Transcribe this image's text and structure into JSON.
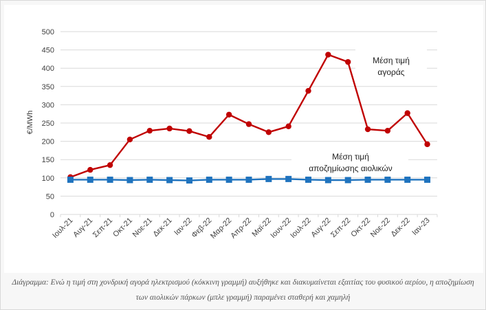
{
  "chart_data": {
    "type": "line",
    "title": "",
    "xlabel": "",
    "ylabel": "€/MWh",
    "ylim": [
      0,
      500
    ],
    "yticks": [
      0,
      50,
      100,
      150,
      200,
      250,
      300,
      350,
      400,
      450,
      500
    ],
    "grid": true,
    "categories": [
      "Ιουλ-21",
      "Αυγ-21",
      "Σεπ-21",
      "Οκτ-21",
      "Νοε-21",
      "Δεκ-21",
      "Ιαν-22",
      "Φεβ-22",
      "Μαρ-22",
      "Απρ-22",
      "Μαϊ-22",
      "Ιουν-22",
      "Ιουλ-22",
      "Αυγ-22",
      "Σεπ-22",
      "Οκτ-22",
      "Νοε-22",
      "Δεκ-22",
      "Ιαν-23"
    ],
    "series": [
      {
        "name": "Μέση τιμή αγοράς",
        "color": "#c00000",
        "marker": "circle",
        "values": [
          102,
          122,
          135,
          205,
          229,
          235,
          228,
          212,
          273,
          247,
          225,
          241,
          338,
          437,
          417,
          233,
          229,
          277,
          192
        ]
      },
      {
        "name": "Μέση τιμή αποζημίωσης αιολικών",
        "color": "#1f73be",
        "marker": "square",
        "values": [
          95,
          95,
          95,
          94,
          95,
          94,
          93,
          95,
          95,
          95,
          97,
          97,
          95,
          94,
          94,
          95,
          95,
          95,
          95
        ]
      }
    ],
    "annotations": [
      {
        "lines": [
          "Μέση τιμή",
          "αγοράς"
        ],
        "series": 0
      },
      {
        "lines": [
          "Μέση τιμή",
          "αποζημίωσης αιολικών"
        ],
        "series": 1
      }
    ]
  },
  "caption": "Διάγραμμα: Ενώ η τιμή στη χονδρική αγορά ηλεκτρισμού (κόκκινη γραμμή) αυξήθηκε και διακυμαίνεται εξαιτίας του φυσικού αερίου, η αποζημίωση των αιολικών πάρκων (μπλε γραμμή) παραμένει σταθερή και χαμηλή"
}
